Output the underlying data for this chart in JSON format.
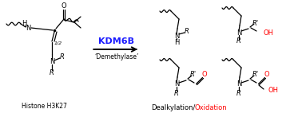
{
  "kdm6b_label": "KDM6B",
  "kdm6b_color": "#1C1CFF",
  "demethylase_label": "‘Demethylase’",
  "histone_label": "Histone H3K27",
  "dealkylation_label": "Dealkylation/",
  "oxidation_label": "Oxidation",
  "oxidation_color": "#FF0000",
  "red_color": "#FF0000",
  "background_color": "#FFFFFF",
  "black": "#000000",
  "figsize": [
    3.78,
    1.42
  ],
  "dpi": 100
}
